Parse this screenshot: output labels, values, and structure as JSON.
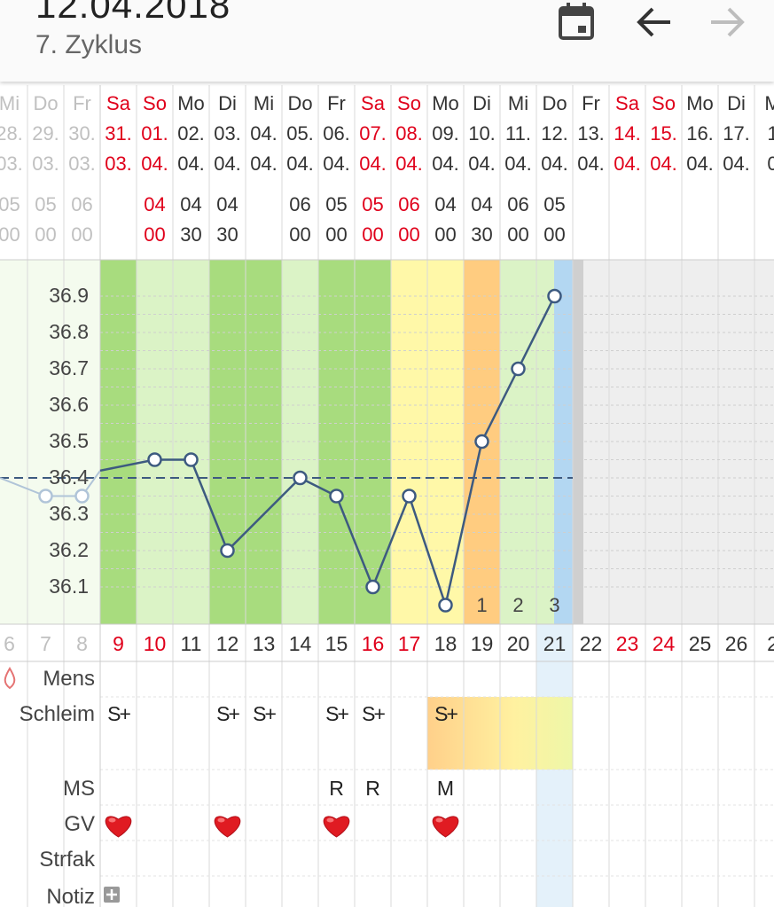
{
  "app": {
    "title": "12.04.2018",
    "subtitle": "7. Zyklus",
    "icons": {
      "calendar": "calendar-icon",
      "back": "arrow-left-icon",
      "forward": "arrow-right-icon"
    }
  },
  "colors": {
    "red": "#e0001b",
    "line": "#3d5a80",
    "green_dark": "#a8dc7e",
    "green_light": "#dbf3c6",
    "yellow": "#fff8a8",
    "orange": "#ffcc80",
    "today": "#b3d7f2"
  },
  "columns": [
    {
      "wd": "Mi",
      "d1": "28.",
      "d2": "03.",
      "t1": "05",
      "t2": "00",
      "cd": "6",
      "state": "past"
    },
    {
      "wd": "Do",
      "d1": "29.",
      "d2": "03.",
      "t1": "05",
      "t2": "00",
      "cd": "7",
      "state": "past"
    },
    {
      "wd": "Fr",
      "d1": "30.",
      "d2": "03.",
      "t1": "06",
      "t2": "00",
      "cd": "8",
      "state": "past"
    },
    {
      "wd": "Sa",
      "d1": "31.",
      "d2": "03.",
      "t1": "",
      "t2": "",
      "cd": "9",
      "state": "weekend"
    },
    {
      "wd": "So",
      "d1": "01.",
      "d2": "04.",
      "t1": "04",
      "t2": "00",
      "cd": "10",
      "state": "weekend"
    },
    {
      "wd": "Mo",
      "d1": "02.",
      "d2": "04.",
      "t1": "04",
      "t2": "30",
      "cd": "11",
      "state": "normal"
    },
    {
      "wd": "Di",
      "d1": "03.",
      "d2": "04.",
      "t1": "04",
      "t2": "30",
      "cd": "12",
      "state": "normal"
    },
    {
      "wd": "Mi",
      "d1": "04.",
      "d2": "04.",
      "t1": "",
      "t2": "",
      "cd": "13",
      "state": "normal"
    },
    {
      "wd": "Do",
      "d1": "05.",
      "d2": "04.",
      "t1": "06",
      "t2": "00",
      "cd": "14",
      "state": "normal"
    },
    {
      "wd": "Fr",
      "d1": "06.",
      "d2": "04.",
      "t1": "05",
      "t2": "00",
      "cd": "15",
      "state": "normal"
    },
    {
      "wd": "Sa",
      "d1": "07.",
      "d2": "04.",
      "t1": "05",
      "t2": "00",
      "cd": "16",
      "state": "weekend"
    },
    {
      "wd": "So",
      "d1": "08.",
      "d2": "04.",
      "t1": "06",
      "t2": "00",
      "cd": "17",
      "state": "weekend"
    },
    {
      "wd": "Mo",
      "d1": "09.",
      "d2": "04.",
      "t1": "04",
      "t2": "00",
      "cd": "18",
      "state": "normal"
    },
    {
      "wd": "Di",
      "d1": "10.",
      "d2": "04.",
      "t1": "04",
      "t2": "30",
      "cd": "19",
      "state": "normal"
    },
    {
      "wd": "Mi",
      "d1": "11.",
      "d2": "04.",
      "t1": "06",
      "t2": "00",
      "cd": "20",
      "state": "normal"
    },
    {
      "wd": "Do",
      "d1": "12.",
      "d2": "04.",
      "t1": "05",
      "t2": "00",
      "cd": "21",
      "state": "today"
    },
    {
      "wd": "Fr",
      "d1": "13.",
      "d2": "04.",
      "t1": "",
      "t2": "",
      "cd": "22",
      "state": "normal"
    },
    {
      "wd": "Sa",
      "d1": "14.",
      "d2": "04.",
      "t1": "",
      "t2": "",
      "cd": "23",
      "state": "weekend"
    },
    {
      "wd": "So",
      "d1": "15.",
      "d2": "04.",
      "t1": "",
      "t2": "",
      "cd": "24",
      "state": "weekend"
    },
    {
      "wd": "Mo",
      "d1": "16.",
      "d2": "04.",
      "t1": "",
      "t2": "",
      "cd": "25",
      "state": "normal"
    },
    {
      "wd": "Di",
      "d1": "17.",
      "d2": "04.",
      "t1": "",
      "t2": "",
      "cd": "26",
      "state": "normal"
    },
    {
      "wd": "M",
      "d1": "1",
      "d2": "0",
      "t1": "",
      "t2": "",
      "cd": "2",
      "state": "normal"
    }
  ],
  "rows": {
    "mens": "Mens",
    "schleim": "Schleim",
    "ms": "MS",
    "gv": "GV",
    "strfak": "Strfak",
    "notiz": "Notiz"
  },
  "schleim_marks": {
    "3": "S+",
    "6": "S+",
    "7": "S+",
    "9": "S+",
    "10": "S+",
    "12": "S+"
  },
  "ms_marks": {
    "9": "R",
    "10": "R",
    "12": "M"
  },
  "gv_days": [
    3,
    6,
    9,
    12
  ],
  "phase_labels": {
    "13": "1",
    "14": "2",
    "15": "3"
  },
  "chart_data": {
    "type": "line",
    "yticks": [
      "36.9",
      "36.8",
      "36.7",
      "36.6",
      "36.5",
      "36.4",
      "36.3",
      "36.2",
      "36.1"
    ],
    "ylim": [
      36.05,
      36.95
    ],
    "coverline": 36.4,
    "temps": [
      null,
      36.35,
      36.35,
      36.42,
      36.45,
      36.45,
      36.2,
      null,
      36.4,
      36.35,
      36.1,
      36.35,
      36.05,
      36.5,
      36.7,
      36.9
    ]
  }
}
